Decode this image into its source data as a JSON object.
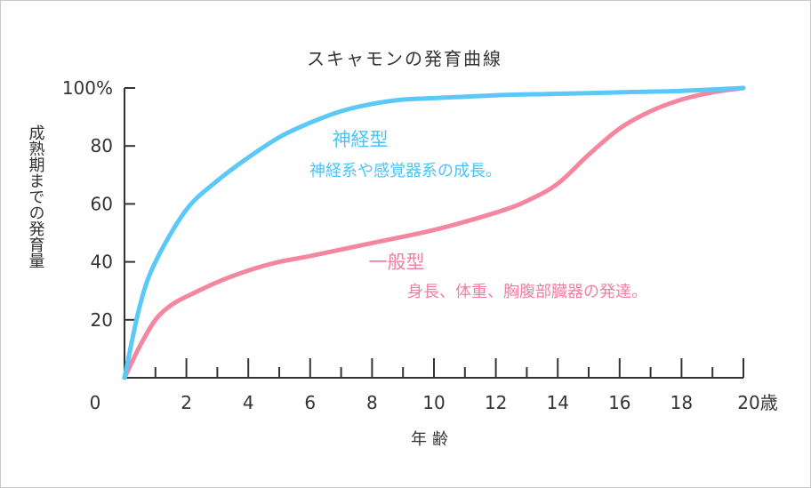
{
  "chart_data": {
    "type": "line",
    "title": "スキャモンの発育曲線",
    "xlabel": "年齢",
    "ylabel": "成熟期までの発育量",
    "x_ticks": [
      "0",
      "2",
      "4",
      "6",
      "8",
      "10",
      "12",
      "14",
      "16",
      "18",
      "20歳"
    ],
    "y_ticks": [
      "20",
      "40",
      "60",
      "80",
      "100%"
    ],
    "xlim": [
      0,
      20
    ],
    "ylim": [
      0,
      100
    ],
    "series": [
      {
        "name": "神経型",
        "description": "神経系や感覚器系の成長。",
        "color": "#5bc8f8",
        "points": [
          [
            0,
            0
          ],
          [
            0.5,
            25
          ],
          [
            1,
            40
          ],
          [
            2,
            58
          ],
          [
            3,
            68
          ],
          [
            4,
            76
          ],
          [
            5,
            83
          ],
          [
            6,
            88
          ],
          [
            7,
            92
          ],
          [
            8,
            94.5
          ],
          [
            9,
            96
          ],
          [
            10,
            96.5
          ],
          [
            12,
            97.5
          ],
          [
            14,
            98
          ],
          [
            16,
            98.5
          ],
          [
            18,
            99
          ],
          [
            20,
            100
          ]
        ]
      },
      {
        "name": "一般型",
        "description": "身長、体重、胸腹部臓器の発達。",
        "color": "#f4879f",
        "points": [
          [
            0,
            0
          ],
          [
            0.5,
            11
          ],
          [
            1,
            20
          ],
          [
            1.5,
            25
          ],
          [
            2,
            28
          ],
          [
            3,
            33
          ],
          [
            4,
            37
          ],
          [
            5,
            40
          ],
          [
            6,
            42
          ],
          [
            8,
            46.5
          ],
          [
            10,
            51
          ],
          [
            12,
            57
          ],
          [
            13,
            61
          ],
          [
            14,
            67
          ],
          [
            15,
            77
          ],
          [
            16,
            86
          ],
          [
            17,
            92
          ],
          [
            18,
            96
          ],
          [
            19,
            98.5
          ],
          [
            20,
            100
          ]
        ]
      }
    ]
  }
}
